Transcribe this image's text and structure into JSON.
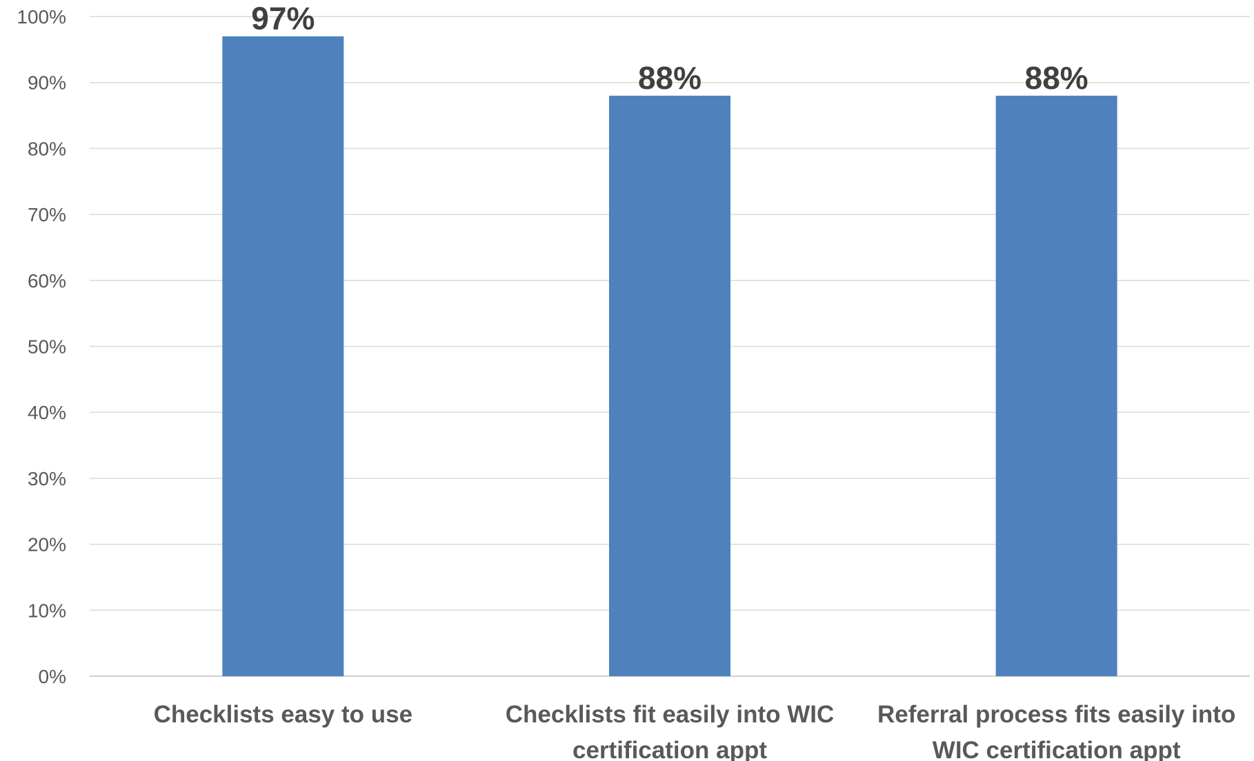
{
  "chart_data": {
    "type": "bar",
    "title": "",
    "xlabel": "",
    "ylabel": "",
    "categories": [
      [
        "Checklists easy to use"
      ],
      [
        "Checklists fit easily into WIC",
        "certification appt"
      ],
      [
        "Referral process fits easily into",
        "WIC certification appt"
      ]
    ],
    "values": [
      97,
      88,
      88
    ],
    "data_labels": [
      "97%",
      "88%",
      "88%"
    ],
    "ylim": [
      0,
      100
    ],
    "yticks": [
      0,
      10,
      20,
      30,
      40,
      50,
      60,
      70,
      80,
      90,
      100
    ],
    "ytick_labels": [
      "0%",
      "10%",
      "20%",
      "30%",
      "40%",
      "50%",
      "60%",
      "70%",
      "80%",
      "90%",
      "100%"
    ],
    "grid": true,
    "legend": "none",
    "bar_color": "#4f81bd"
  }
}
